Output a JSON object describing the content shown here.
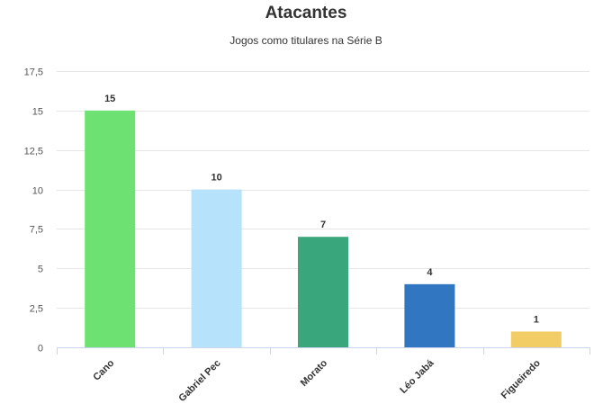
{
  "chart_data": {
    "type": "bar",
    "title": "Atacantes",
    "subtitle": "Jogos como titulares na Série B",
    "categories": [
      "Cano",
      "Gabriel Pec",
      "Morato",
      "Léo Jabá",
      "Figueiredo"
    ],
    "values": [
      15,
      10,
      7,
      4,
      1
    ],
    "data_labels": [
      "15",
      "10",
      "7",
      "4",
      "1"
    ],
    "colors": [
      "#6de273",
      "#b6e3fb",
      "#3aa67b",
      "#3176c1",
      "#f2cd66"
    ],
    "ylim": [
      0,
      17.5
    ],
    "yticks": [
      0,
      2.5,
      5,
      7.5,
      10,
      12.5,
      15,
      17.5
    ],
    "ytick_labels": [
      "0",
      "2,5",
      "5",
      "7,5",
      "10",
      "12,5",
      "15",
      "17,5"
    ],
    "grid": true,
    "legend": "none",
    "xlabel": "",
    "ylabel": ""
  }
}
